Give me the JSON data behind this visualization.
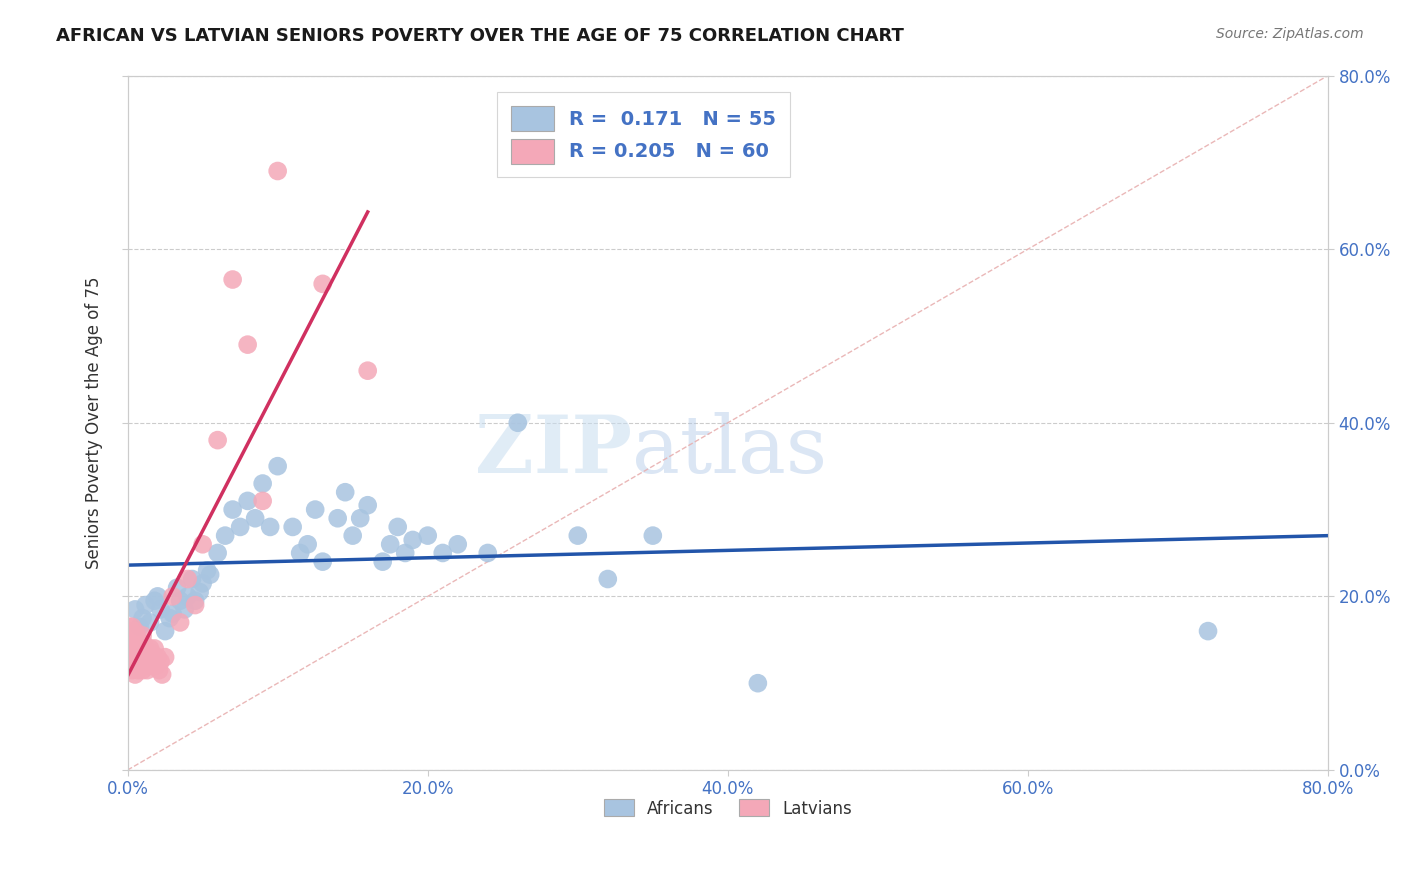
{
  "title": "AFRICAN VS LATVIAN SENIORS POVERTY OVER THE AGE OF 75 CORRELATION CHART",
  "source": "Source: ZipAtlas.com",
  "ylabel": "Seniors Poverty Over the Age of 75",
  "xlim": [
    0.0,
    0.8
  ],
  "ylim": [
    0.0,
    0.8
  ],
  "xticks": [
    0.0,
    0.2,
    0.4,
    0.6,
    0.8
  ],
  "yticks": [
    0.0,
    0.2,
    0.4,
    0.6,
    0.8
  ],
  "xtick_labels": [
    "0.0%",
    "20.0%",
    "40.0%",
    "60.0%",
    "80.0%"
  ],
  "ytick_labels": [
    "0.0%",
    "20.0%",
    "40.0%",
    "60.0%",
    "80.0%"
  ],
  "african_color": "#a8c4e0",
  "latvian_color": "#f4a8b8",
  "african_line_color": "#2255aa",
  "latvian_line_color": "#d03060",
  "diagonal_color": "#e8b0b0",
  "background_color": "#ffffff",
  "grid_color": "#cccccc",
  "africans_x": [
    0.005,
    0.008,
    0.01,
    0.012,
    0.015,
    0.018,
    0.02,
    0.022,
    0.025,
    0.028,
    0.03,
    0.033,
    0.035,
    0.038,
    0.04,
    0.043,
    0.045,
    0.048,
    0.05,
    0.053,
    0.055,
    0.06,
    0.065,
    0.07,
    0.075,
    0.08,
    0.085,
    0.09,
    0.095,
    0.1,
    0.11,
    0.115,
    0.12,
    0.125,
    0.13,
    0.14,
    0.145,
    0.15,
    0.155,
    0.16,
    0.17,
    0.175,
    0.18,
    0.185,
    0.19,
    0.2,
    0.21,
    0.22,
    0.24,
    0.26,
    0.3,
    0.32,
    0.35,
    0.42,
    0.72
  ],
  "africans_y": [
    0.185,
    0.165,
    0.175,
    0.19,
    0.17,
    0.195,
    0.2,
    0.185,
    0.16,
    0.175,
    0.18,
    0.21,
    0.195,
    0.185,
    0.2,
    0.22,
    0.195,
    0.205,
    0.215,
    0.23,
    0.225,
    0.25,
    0.27,
    0.3,
    0.28,
    0.31,
    0.29,
    0.33,
    0.28,
    0.35,
    0.28,
    0.25,
    0.26,
    0.3,
    0.24,
    0.29,
    0.32,
    0.27,
    0.29,
    0.305,
    0.24,
    0.26,
    0.28,
    0.25,
    0.265,
    0.27,
    0.25,
    0.26,
    0.25,
    0.4,
    0.27,
    0.22,
    0.27,
    0.1,
    0.16
  ],
  "latvians_x": [
    0.001,
    0.001,
    0.001,
    0.001,
    0.002,
    0.002,
    0.002,
    0.003,
    0.003,
    0.003,
    0.003,
    0.004,
    0.004,
    0.004,
    0.005,
    0.005,
    0.005,
    0.005,
    0.006,
    0.006,
    0.006,
    0.007,
    0.007,
    0.007,
    0.008,
    0.008,
    0.009,
    0.01,
    0.01,
    0.01,
    0.011,
    0.011,
    0.012,
    0.012,
    0.013,
    0.013,
    0.014,
    0.015,
    0.015,
    0.016,
    0.017,
    0.018,
    0.019,
    0.02,
    0.021,
    0.022,
    0.023,
    0.025,
    0.03,
    0.035,
    0.04,
    0.045,
    0.05,
    0.06,
    0.07,
    0.08,
    0.09,
    0.1,
    0.13,
    0.16
  ],
  "latvians_y": [
    0.165,
    0.155,
    0.145,
    0.12,
    0.16,
    0.15,
    0.125,
    0.165,
    0.145,
    0.13,
    0.115,
    0.155,
    0.14,
    0.12,
    0.16,
    0.145,
    0.13,
    0.11,
    0.155,
    0.14,
    0.12,
    0.15,
    0.135,
    0.115,
    0.145,
    0.13,
    0.14,
    0.155,
    0.135,
    0.115,
    0.145,
    0.125,
    0.14,
    0.12,
    0.135,
    0.115,
    0.13,
    0.14,
    0.12,
    0.135,
    0.125,
    0.14,
    0.12,
    0.13,
    0.115,
    0.125,
    0.11,
    0.13,
    0.2,
    0.17,
    0.22,
    0.19,
    0.26,
    0.38,
    0.565,
    0.49,
    0.31,
    0.69,
    0.56,
    0.46
  ],
  "watermark_zip": "ZIP",
  "watermark_atlas": "atlas",
  "legend_african_label": "R =  0.171   N = 55",
  "legend_latvian_label": "R = 0.205   N = 60"
}
